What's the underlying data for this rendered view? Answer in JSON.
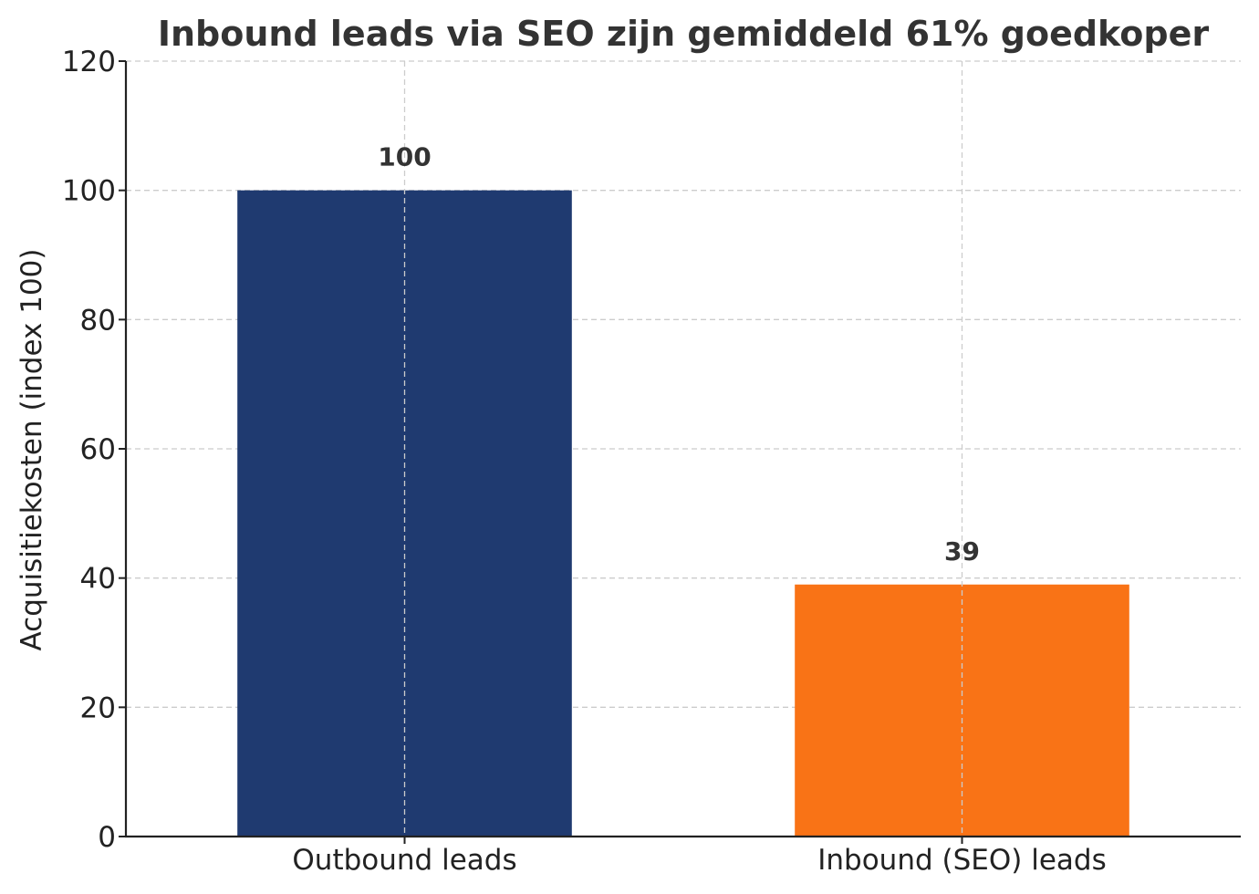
{
  "chart_data": {
    "type": "bar",
    "title": "Inbound leads via SEO zijn gemiddeld 61% goedkoper",
    "xlabel": "",
    "ylabel": "Acquisitiekosten (index 100)",
    "categories": [
      "Outbound leads",
      "Inbound (SEO) leads"
    ],
    "values": [
      100,
      39
    ],
    "value_labels": [
      "100",
      "39"
    ],
    "colors": [
      "#1f3a70",
      "#f97316"
    ],
    "ylim": [
      0,
      120
    ],
    "yticks": [
      0,
      20,
      40,
      60,
      80,
      100,
      120
    ],
    "grid": true,
    "legend": false
  }
}
